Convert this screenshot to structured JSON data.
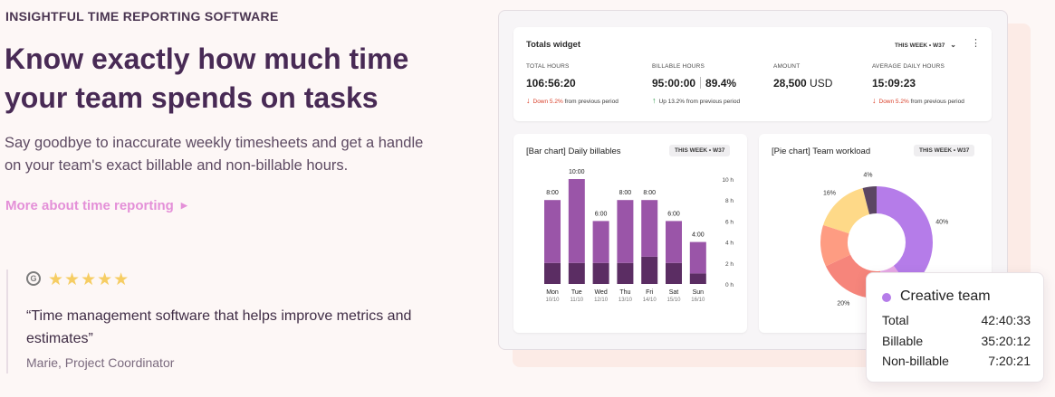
{
  "hero": {
    "eyebrow": "INSIGHTFUL TIME REPORTING SOFTWARE",
    "headline": "Know exactly how much time your team spends on tasks",
    "lede": "Say goodbye to inaccurate weekly timesheets and get a handle on your team's exact billable and non-billable hours.",
    "more_link": "More about time reporting",
    "more_caret": "▶"
  },
  "testimonial": {
    "badge": "G",
    "stars": "★★★★★",
    "rating": 5,
    "quote": "“Time management software that helps improve metrics and estimates”",
    "cite": "Marie, Project Coordinator"
  },
  "totals": {
    "title": "Totals widget",
    "period": "THIS WEEK • W37",
    "chevron": "⌄",
    "menu": "⋮",
    "metrics": [
      {
        "label": "TOTAL HOURS",
        "value": "106:56:20",
        "arrow": "↓",
        "change": "Down 5.2%",
        "suffix": "from previous period",
        "dir": "down"
      },
      {
        "label": "BILLABLE HOURS",
        "value": "95:00:00",
        "extra": "89.4%",
        "arrow": "↑",
        "change": "Up 13.2%",
        "suffix": "from previous period",
        "dir": "up"
      },
      {
        "label": "AMOUNT",
        "value": "28,500",
        "unit": "USD"
      },
      {
        "label": "AVERAGE DAILY HOURS",
        "value": "15:09:23",
        "arrow": "↓",
        "change": "Down 5.2%",
        "suffix": "from previous period",
        "dir": "down"
      }
    ]
  },
  "bar_card": {
    "title": "[Bar chart] Daily billables",
    "period": "THIS WEEK • W37"
  },
  "pie_card": {
    "title": "[Pie chart] Team workload",
    "period": "THIS WEEK • W37"
  },
  "chart_data": [
    {
      "type": "bar",
      "title": "[Bar chart] Daily billables",
      "categories": [
        "Mon",
        "Tue",
        "Wed",
        "Thu",
        "Fri",
        "Sat",
        "Sun"
      ],
      "dates": [
        "10/10",
        "11/10",
        "12/10",
        "13/10",
        "14/10",
        "15/10",
        "16/10"
      ],
      "data_labels": [
        "8:00",
        "10:00",
        "6:00",
        "8:00",
        "8:00",
        "6:00",
        "4:00"
      ],
      "series": [
        {
          "values": [
            2,
            2,
            2,
            2,
            2.6,
            2,
            1
          ],
          "color": "#5b2d63"
        },
        {
          "values": [
            6,
            8,
            4,
            6,
            5.4,
            4,
            3
          ],
          "color": "#9a55a8"
        }
      ],
      "yticks": [
        "0 h",
        "2 h",
        "4 h",
        "6 h",
        "8 h",
        "10 h"
      ],
      "ylim": [
        0,
        10
      ],
      "grid": false
    },
    {
      "type": "pie",
      "title": "[Pie chart] Team workload",
      "donut": true,
      "slices": [
        {
          "value": 40,
          "label": "40%",
          "color": "#b57ce9"
        },
        {
          "value": 8,
          "label": "",
          "color": "#e6a8e5"
        },
        {
          "value": 20,
          "label": "20%",
          "color": "#f6857b"
        },
        {
          "value": 12,
          "label": "",
          "color": "#fe9c82"
        },
        {
          "value": 16,
          "label": "16%",
          "color": "#fed988"
        },
        {
          "value": 4,
          "label": "4%",
          "color": "#5b4663"
        }
      ]
    }
  ],
  "popup": {
    "title": "Creative team",
    "color": "#b57ce9",
    "rows": [
      {
        "label": "Total",
        "value": "42:40:33"
      },
      {
        "label": "Billable",
        "value": "35:20:12"
      },
      {
        "label": "Non-billable",
        "value": "7:20:21"
      }
    ]
  }
}
